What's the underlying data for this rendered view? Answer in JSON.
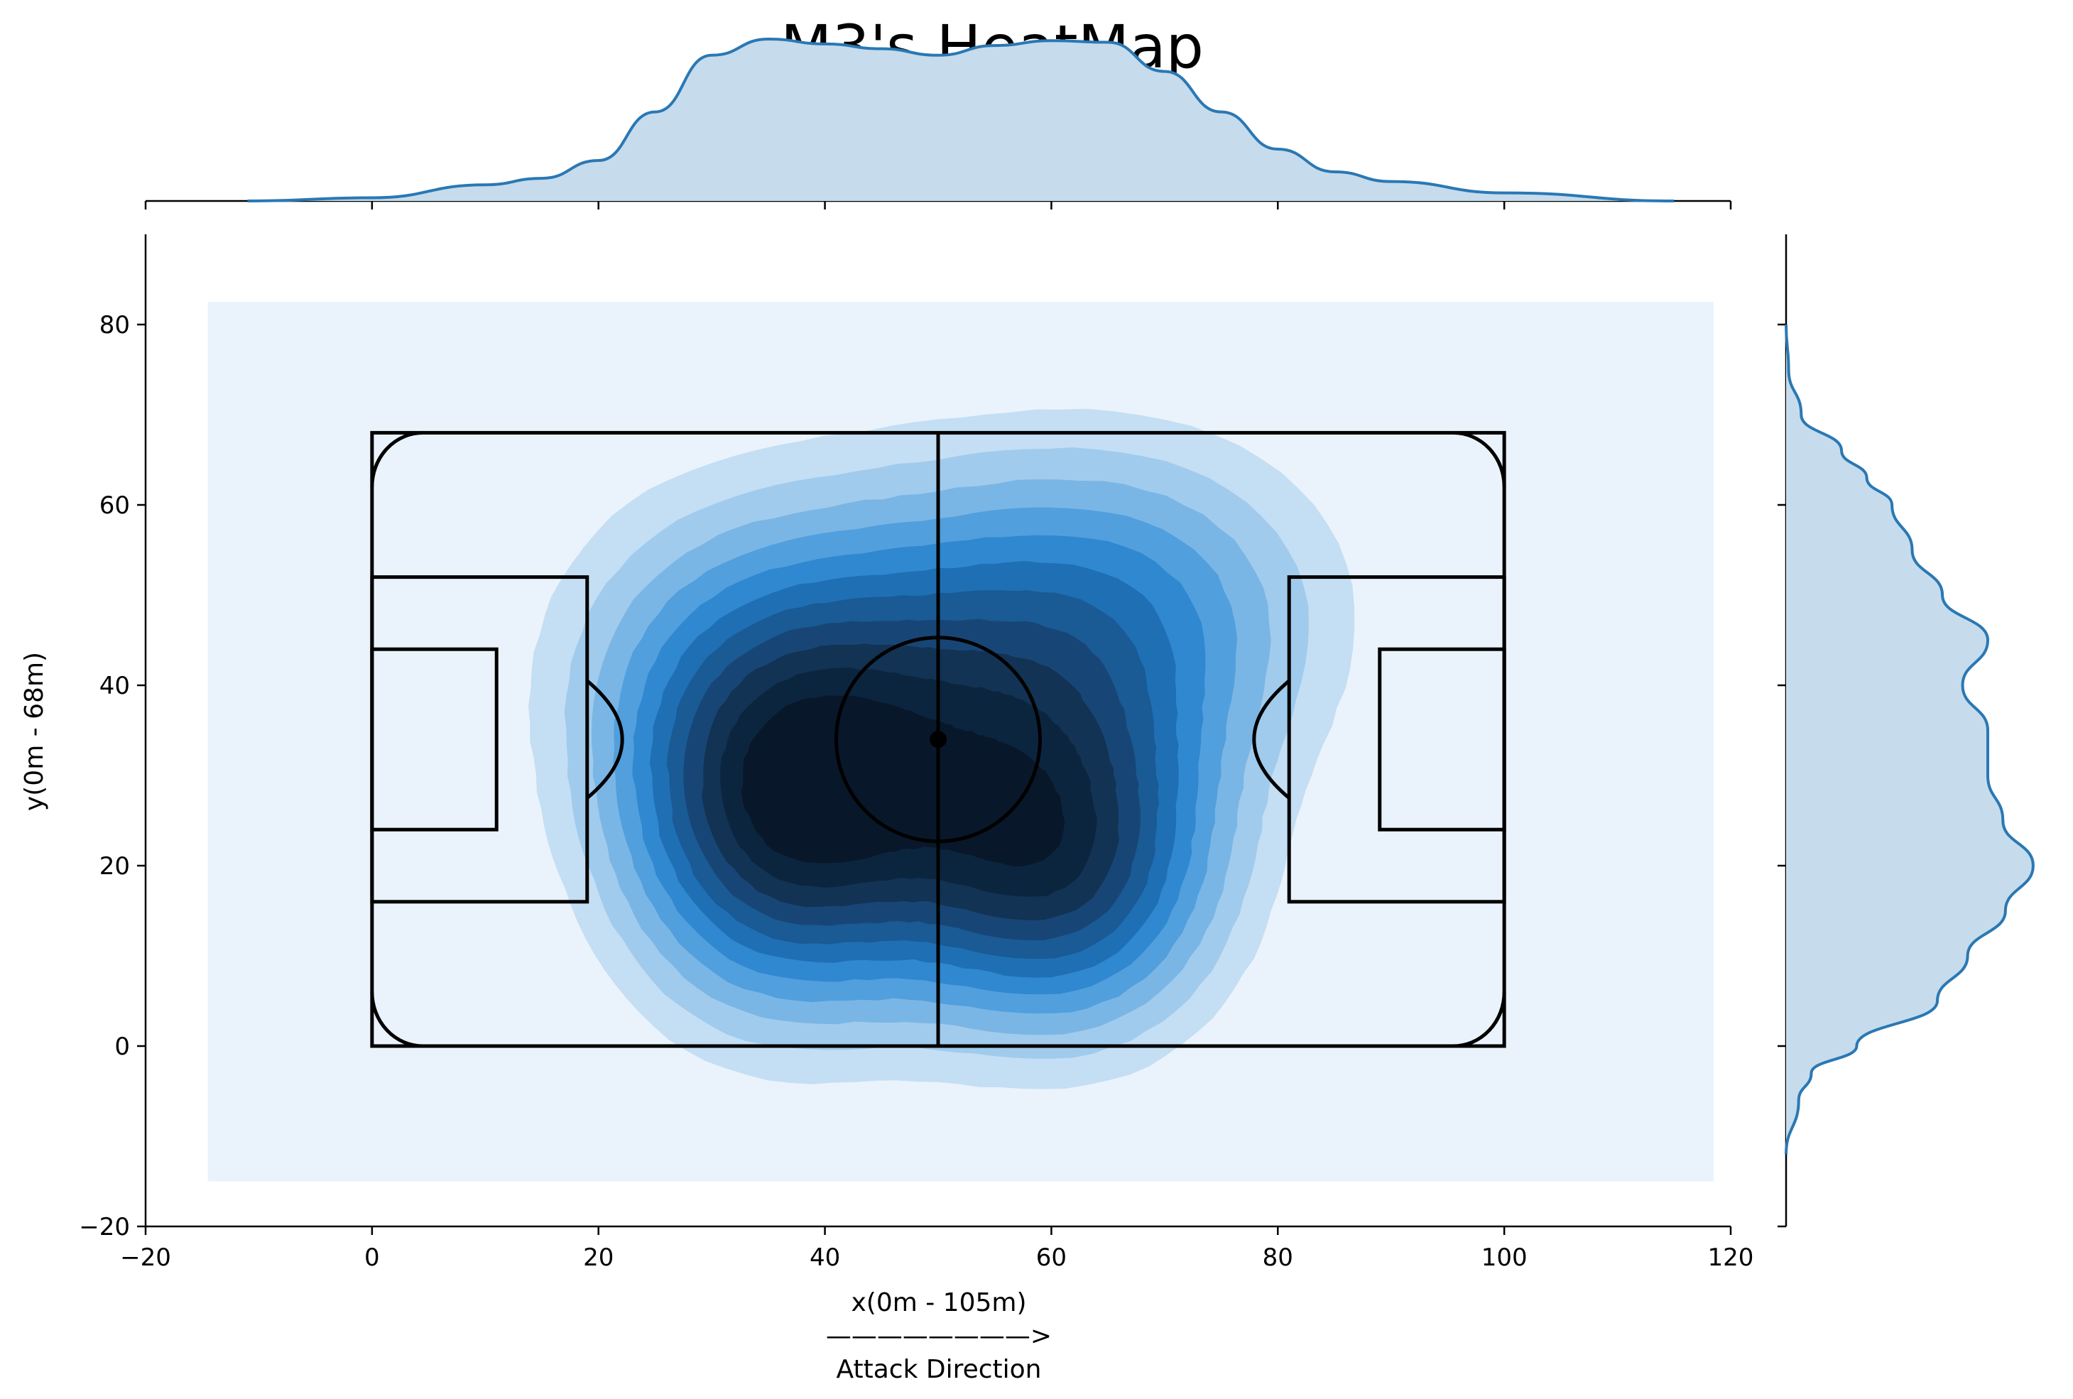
{
  "chart_data": {
    "type": "heatmap",
    "title": "M3's HeatMap",
    "xlabel": "x(0m - 105m)",
    "xlabel_arrow": "————————>",
    "xlabel_direction": "Attack Direction",
    "ylabel": "y(0m - 68m)",
    "xlim": [
      -20,
      120
    ],
    "ylim": [
      -20,
      90
    ],
    "xticks": [
      -20,
      0,
      20,
      40,
      60,
      80,
      100,
      120
    ],
    "yticks": [
      -20,
      0,
      20,
      40,
      60,
      80
    ],
    "xtick_labels": [
      "−20",
      "0",
      "20",
      "40",
      "60",
      "80",
      "100",
      "120"
    ],
    "ytick_labels": [
      "−20",
      "0",
      "20",
      "40",
      "60",
      "80"
    ],
    "grid": false,
    "kde_extent": {
      "x": [
        -14.5,
        118.5
      ],
      "y": [
        -15,
        82.5
      ]
    },
    "density_peaks": [
      {
        "x": 36,
        "y": 24,
        "level": "highest"
      },
      {
        "x": 62,
        "y": 18,
        "level": "highest"
      },
      {
        "x": 52,
        "y": 33,
        "level": "high"
      }
    ],
    "marginal_x": {
      "x": [
        -11,
        0,
        10,
        15,
        20,
        25,
        30,
        35,
        40,
        45,
        50,
        55,
        60,
        65,
        70,
        75,
        80,
        85,
        90,
        100,
        115
      ],
      "density": [
        0.0,
        0.02,
        0.1,
        0.14,
        0.25,
        0.55,
        0.9,
        1.0,
        0.97,
        0.94,
        0.9,
        0.96,
        0.99,
        0.98,
        0.8,
        0.55,
        0.32,
        0.18,
        0.12,
        0.05,
        0.0
      ]
    },
    "marginal_y": {
      "y": [
        -12,
        -6,
        -3,
        0,
        5,
        10,
        15,
        20,
        25,
        30,
        35,
        40,
        45,
        50,
        55,
        60,
        63,
        66,
        70,
        75,
        80
      ],
      "density": [
        0.0,
        0.05,
        0.1,
        0.28,
        0.6,
        0.72,
        0.87,
        0.98,
        0.86,
        0.8,
        0.8,
        0.7,
        0.8,
        0.62,
        0.5,
        0.42,
        0.32,
        0.22,
        0.06,
        0.01,
        0.0
      ]
    },
    "colors": {
      "levels": [
        "#eaf3fb",
        "#c4def4",
        "#a1cbec",
        "#7ab6e5",
        "#519fdd",
        "#2f88d0",
        "#1f6fb4",
        "#1a5a95",
        "#174676",
        "#123353",
        "#0c253f",
        "#08182a"
      ],
      "marginal_line": "#2a78b4",
      "marginal_fill": "#c6dcec",
      "pitch_lines": "#000000"
    }
  }
}
